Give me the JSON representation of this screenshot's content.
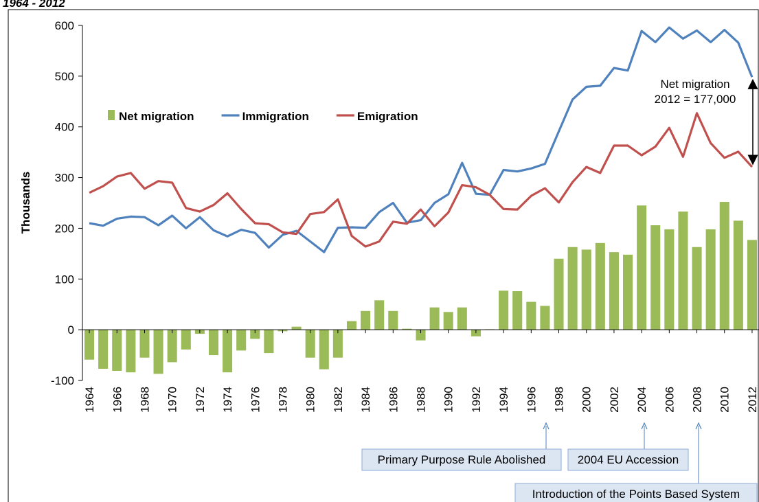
{
  "chart_data": {
    "type": "bar_line",
    "title": "1964 - 2012",
    "y_label": "Thousands",
    "x": [
      1964,
      1965,
      1966,
      1967,
      1968,
      1969,
      1970,
      1971,
      1972,
      1973,
      1974,
      1975,
      1976,
      1977,
      1978,
      1979,
      1980,
      1981,
      1982,
      1983,
      1984,
      1985,
      1986,
      1987,
      1988,
      1989,
      1990,
      1991,
      1992,
      1993,
      1994,
      1995,
      1996,
      1997,
      1998,
      1999,
      2000,
      2001,
      2002,
      2003,
      2004,
      2005,
      2006,
      2007,
      2008,
      2009,
      2010,
      2011,
      2012
    ],
    "series": [
      {
        "name": "Net migration",
        "kind": "bar",
        "color": "#9bbb59",
        "values": [
          -59,
          -77,
          -81,
          -84,
          -55,
          -87,
          -64,
          -39,
          -8,
          -50,
          -84,
          -41,
          -18,
          -46,
          -3,
          6,
          -55,
          -78,
          -55,
          17,
          37,
          58,
          37,
          2,
          -21,
          44,
          35,
          44,
          -13,
          1,
          77,
          76,
          55,
          47,
          140,
          163,
          158,
          171,
          153,
          148,
          245,
          206,
          198,
          233,
          163,
          198,
          252,
          215,
          177
        ]
      },
      {
        "name": "Immigration",
        "kind": "line",
        "color": "#4f81bd",
        "values": [
          210,
          205,
          219,
          223,
          222,
          206,
          225,
          200,
          222,
          196,
          184,
          197,
          191,
          162,
          187,
          195,
          174,
          153,
          201,
          202,
          201,
          232,
          250,
          211,
          216,
          250,
          267,
          329,
          268,
          266,
          315,
          312,
          318,
          327,
          391,
          454,
          479,
          481,
          516,
          511,
          589,
          567,
          596,
          574,
          590,
          567,
          591,
          566,
          498
        ]
      },
      {
        "name": "Emigration",
        "kind": "line",
        "color": "#c0504d",
        "values": [
          270,
          283,
          302,
          309,
          278,
          293,
          290,
          240,
          233,
          246,
          269,
          238,
          210,
          208,
          192,
          189,
          228,
          232,
          257,
          185,
          164,
          174,
          213,
          209,
          237,
          204,
          231,
          285,
          281,
          266,
          238,
          237,
          264,
          279,
          251,
          291,
          321,
          309,
          363,
          363,
          344,
          361,
          398,
          341,
          427,
          368,
          339,
          351,
          321
        ]
      }
    ],
    "xlim": [
      1963.5,
      2012.5
    ],
    "xticks": [
      1964,
      1966,
      1968,
      1970,
      1972,
      1974,
      1976,
      1978,
      1980,
      1982,
      1984,
      1986,
      1988,
      1990,
      1992,
      1994,
      1996,
      1998,
      2000,
      2002,
      2004,
      2006,
      2008,
      2010,
      2012
    ],
    "ylim": [
      -100,
      600
    ],
    "yticks": [
      -100,
      0,
      100,
      200,
      300,
      400,
      500,
      600
    ],
    "net_note": [
      "Net migration",
      "2012 = 177,000"
    ],
    "annotations": [
      "Primary Purpose Rule Abolished",
      "2004 EU Accession",
      "Introduction of the Points Based System"
    ]
  }
}
